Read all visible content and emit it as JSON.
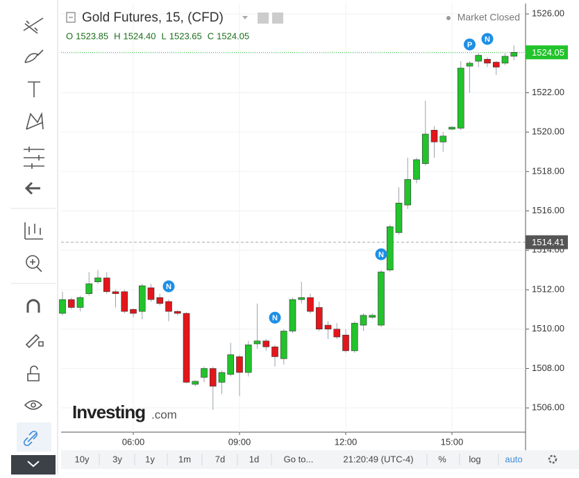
{
  "chart_data": {
    "type": "candlestick",
    "title": "Gold Futures, 15, (CFD)",
    "status": "Market Closed",
    "ohlc_header": [
      {
        "key": "O",
        "value": "1523.85"
      },
      {
        "key": "H",
        "value": "1524.40"
      },
      {
        "key": "L",
        "value": "1523.65"
      },
      {
        "key": "C",
        "value": "1524.05"
      }
    ],
    "categories": [
      null,
      null,
      null,
      null,
      null,
      null,
      null,
      null,
      "06:00",
      null,
      null,
      null,
      null,
      null,
      null,
      null,
      null,
      null,
      null,
      null,
      "09:00",
      null,
      null,
      null,
      null,
      null,
      null,
      null,
      null,
      null,
      null,
      null,
      "12:00",
      null,
      null,
      null,
      null,
      null,
      null,
      null,
      null,
      null,
      null,
      null,
      "15:00",
      null,
      null,
      null,
      null,
      null,
      null,
      null
    ],
    "open": [
      1510.8,
      1511.5,
      1511.1,
      1511.8,
      1512.4,
      1512.6,
      1511.9,
      1511.9,
      1511.0,
      1510.9,
      1512.1,
      1511.6,
      1511.4,
      1510.9,
      1510.8,
      1507.2,
      1507.55,
      1508.0,
      1507.3,
      1507.7,
      1508.6,
      1507.8,
      1509.25,
      1509.4,
      1509.1,
      1508.5,
      1509.9,
      1511.5,
      1511.6,
      1511.1,
      1510.2,
      1510.0,
      1509.7,
      1508.9,
      1510.2,
      1510.6,
      1510.2,
      1513.0,
      1514.9,
      1516.3,
      1517.6,
      1518.4,
      1520.1,
      1519.5,
      1520.15,
      1520.2,
      1523.35,
      1523.6,
      1523.7,
      1523.55,
      1523.5,
      1523.85
    ],
    "high": [
      1511.9,
      1511.6,
      1511.7,
      1512.9,
      1513.0,
      1512.9,
      1512.0,
      1512.0,
      1511.05,
      1512.3,
      1512.3,
      1511.8,
      1511.5,
      1510.95,
      1510.85,
      1507.4,
      1508.1,
      1508.1,
      1507.9,
      1509.3,
      1508.7,
      1509.4,
      1511.3,
      1509.5,
      1509.2,
      1510.0,
      1511.6,
      1512.4,
      1511.8,
      1511.4,
      1510.4,
      1510.3,
      1510.0,
      1510.4,
      1510.8,
      1510.8,
      1513.0,
      1515.3,
      1517.2,
      1518.7,
      1518.7,
      1521.6,
      1520.3,
      1520.0,
      1520.3,
      1523.6,
      1523.6,
      1524.0,
      1523.8,
      1523.6,
      1524.0,
      1524.4
    ],
    "low": [
      1510.7,
      1511.0,
      1510.9,
      1511.7,
      1512.3,
      1511.8,
      1511.1,
      1510.8,
      1510.6,
      1510.5,
      1511.4,
      1511.2,
      1510.4,
      1510.7,
      1507.25,
      1507.1,
      1507.3,
      1505.9,
      1506.7,
      1507.6,
      1506.6,
      1507.6,
      1509.0,
      1508.9,
      1508.1,
      1508.2,
      1509.8,
      1511.3,
      1510.8,
      1509.9,
      1509.5,
      1509.5,
      1508.8,
      1508.8,
      1509.9,
      1510.5,
      1510.1,
      1512.9,
      1514.8,
      1516.1,
      1517.4,
      1518.3,
      1518.7,
      1519.0,
      1520.1,
      1520.1,
      1522.0,
      1523.3,
      1523.3,
      1522.9,
      1523.4,
      1523.65
    ],
    "close": [
      1511.5,
      1511.1,
      1511.6,
      1512.3,
      1512.6,
      1511.9,
      1511.8,
      1510.9,
      1510.8,
      1512.2,
      1511.5,
      1511.3,
      1510.9,
      1510.8,
      1507.3,
      1507.35,
      1508.0,
      1507.1,
      1507.8,
      1508.7,
      1507.8,
      1509.2,
      1509.4,
      1509.1,
      1508.6,
      1509.9,
      1511.5,
      1511.6,
      1510.9,
      1510.0,
      1510.0,
      1509.6,
      1508.9,
      1510.3,
      1510.7,
      1510.7,
      1512.9,
      1515.2,
      1516.4,
      1517.6,
      1518.6,
      1519.9,
      1519.5,
      1519.8,
      1520.25,
      1523.25,
      1523.5,
      1523.9,
      1523.5,
      1523.3,
      1523.85,
      1524.05
    ],
    "up_color": "#22c32b",
    "down_color": "#e3161b",
    "ylim": [
      1504.77,
      1526.53
    ],
    "yticks": [
      {
        "value": 1506,
        "label": "1506.00"
      },
      {
        "value": 1508,
        "label": "1508.00"
      },
      {
        "value": 1510,
        "label": "1510.00"
      },
      {
        "value": 1512,
        "label": "1512.00"
      },
      {
        "value": 1514,
        "label": "1514.00"
      },
      {
        "value": 1516,
        "label": "1516.00"
      },
      {
        "value": 1518,
        "label": "1518.00"
      },
      {
        "value": 1520,
        "label": "1520.00"
      },
      {
        "value": 1522,
        "label": "1522.00"
      },
      {
        "value": 1524,
        "label": "1524.00"
      },
      {
        "value": 1526,
        "label": "1526.00"
      }
    ],
    "grid": true,
    "price_lines": [
      {
        "value": 1524.05,
        "label": "1524.05",
        "color": "#22c32b"
      },
      {
        "value": 1514.41,
        "label": "1514.41",
        "color": "#555555"
      }
    ],
    "events": [
      {
        "label": "N",
        "index": 12,
        "y": 1512.17
      },
      {
        "label": "N",
        "index": 24,
        "y": 1510.58
      },
      {
        "label": "N",
        "index": 36,
        "y": 1513.8
      },
      {
        "label": "P",
        "index": 46,
        "y": 1524.45
      },
      {
        "label": "N",
        "index": 48,
        "y": 1524.73
      }
    ],
    "event_color": "#1e8fe6",
    "watermark": [
      "Investing",
      ".com"
    ]
  },
  "toolbar": {
    "ranges": [
      "10y",
      "3y",
      "1y",
      "1m",
      "7d",
      "1d"
    ],
    "goto": "Go to...",
    "clock": "21:20:49 (UTC-4)",
    "options": [
      "%",
      "log",
      "auto"
    ]
  }
}
